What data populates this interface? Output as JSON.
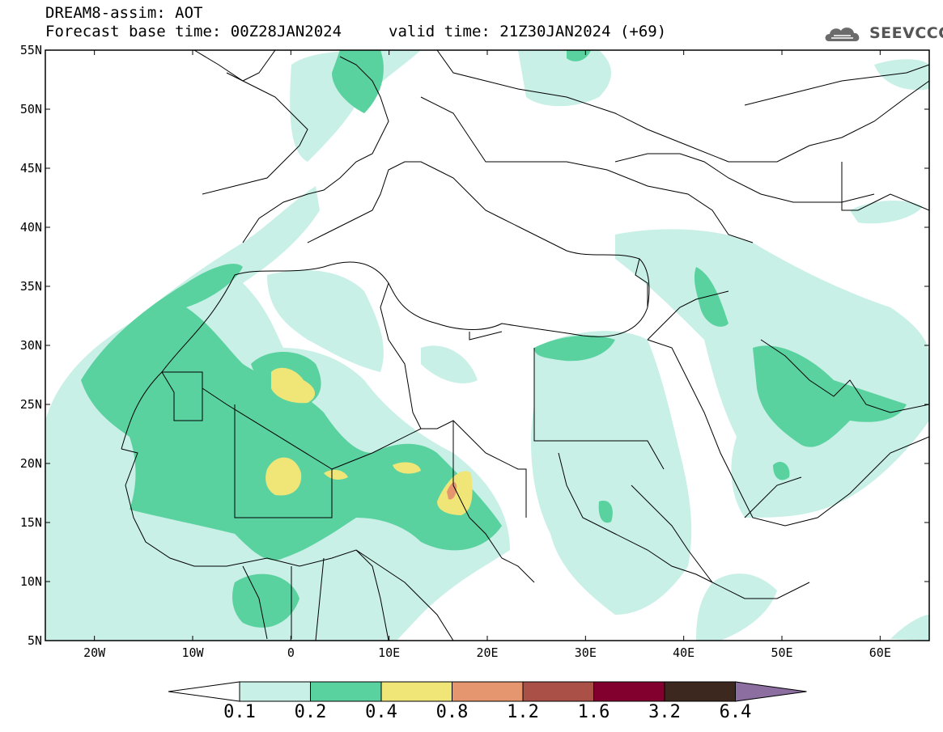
{
  "header": {
    "line1": "DREAM8-assim: AOT",
    "line2": "Forecast base time: 00Z28JAN2024",
    "valid": "valid time: 21Z30JAN2024 (+69)",
    "logo_text": "SEEVCCC"
  },
  "map": {
    "variable": "AOT",
    "lat_labels": [
      "55N",
      "50N",
      "45N",
      "40N",
      "35N",
      "30N",
      "25N",
      "20N",
      "15N",
      "10N",
      "5N"
    ],
    "lon_labels": [
      "20W",
      "10W",
      "0",
      "10E",
      "20E",
      "30E",
      "40E",
      "50E",
      "60E"
    ],
    "lat_range": [
      5,
      55
    ],
    "lon_range": [
      -25,
      65
    ]
  },
  "colorbar": {
    "labels": [
      "0.1",
      "0.2",
      "0.4",
      "0.8",
      "1.2",
      "1.6",
      "3.2",
      "6.4"
    ],
    "colors": [
      "#ffffff",
      "#c8f0e6",
      "#5ad2a0",
      "#f0e678",
      "#e6966e",
      "#aa5046",
      "#82002d",
      "#3c281e",
      "#8c6ea0"
    ]
  }
}
